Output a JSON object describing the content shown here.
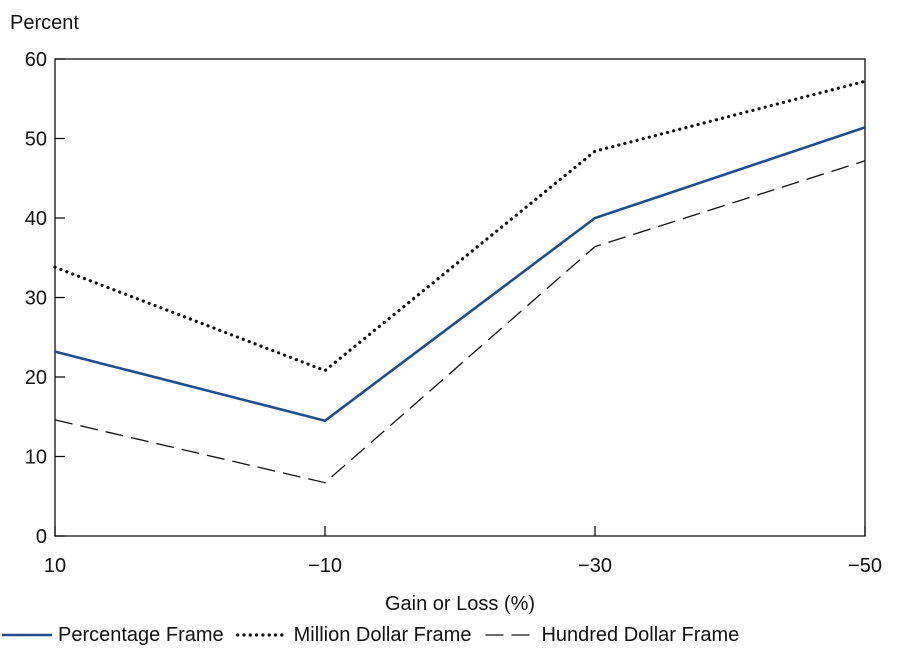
{
  "chart_data": {
    "type": "line",
    "title": "",
    "ylabel": "Percent",
    "xlabel": "Gain or Loss (%)",
    "x_categories": [
      "10",
      "−10",
      "−30",
      "−50"
    ],
    "ylim": [
      0,
      60
    ],
    "yticks": [
      "0",
      "10",
      "20",
      "30",
      "40",
      "50",
      "60"
    ],
    "grid": false,
    "legend_position": "bottom",
    "series": [
      {
        "name": "Percentage Frame",
        "values": [
          23.2,
          14.5,
          40.0,
          51.4
        ],
        "color": "#1f4e8c",
        "style": "solid"
      },
      {
        "name": "Million Dollar Frame",
        "values": [
          33.8,
          20.8,
          48.4,
          57.2
        ],
        "color": "#111111",
        "style": "dotted"
      },
      {
        "name": "Hundred Dollar Frame",
        "values": [
          14.6,
          6.7,
          36.4,
          47.2
        ],
        "color": "#111111",
        "style": "dashed"
      }
    ]
  }
}
